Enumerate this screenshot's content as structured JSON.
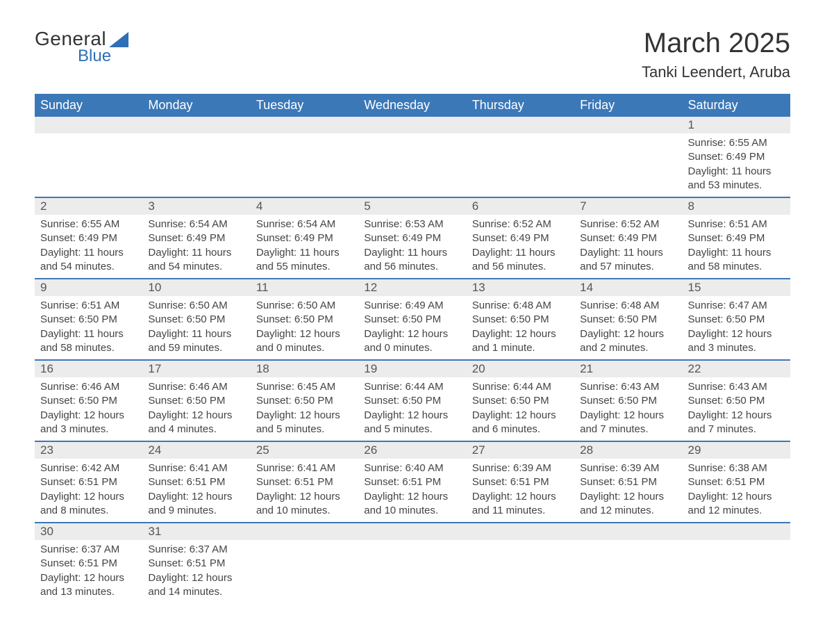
{
  "logo": {
    "line1": "General",
    "line2": "Blue",
    "icon_color": "#2e6fb5"
  },
  "title": "March 2025",
  "location": "Tanki Leendert, Aruba",
  "colors": {
    "header_bg": "#3b78b8",
    "header_text": "#ffffff",
    "daynum_bg": "#ececec",
    "row_border": "#3b78b8",
    "text": "#333333",
    "cell_text": "#444444"
  },
  "day_headers": [
    "Sunday",
    "Monday",
    "Tuesday",
    "Wednesday",
    "Thursday",
    "Friday",
    "Saturday"
  ],
  "weeks": [
    {
      "nums": [
        "",
        "",
        "",
        "",
        "",
        "",
        "1"
      ],
      "cells": [
        "",
        "",
        "",
        "",
        "",
        "",
        "Sunrise: 6:55 AM\nSunset: 6:49 PM\nDaylight: 11 hours and 53 minutes."
      ]
    },
    {
      "nums": [
        "2",
        "3",
        "4",
        "5",
        "6",
        "7",
        "8"
      ],
      "cells": [
        "Sunrise: 6:55 AM\nSunset: 6:49 PM\nDaylight: 11 hours and 54 minutes.",
        "Sunrise: 6:54 AM\nSunset: 6:49 PM\nDaylight: 11 hours and 54 minutes.",
        "Sunrise: 6:54 AM\nSunset: 6:49 PM\nDaylight: 11 hours and 55 minutes.",
        "Sunrise: 6:53 AM\nSunset: 6:49 PM\nDaylight: 11 hours and 56 minutes.",
        "Sunrise: 6:52 AM\nSunset: 6:49 PM\nDaylight: 11 hours and 56 minutes.",
        "Sunrise: 6:52 AM\nSunset: 6:49 PM\nDaylight: 11 hours and 57 minutes.",
        "Sunrise: 6:51 AM\nSunset: 6:49 PM\nDaylight: 11 hours and 58 minutes."
      ]
    },
    {
      "nums": [
        "9",
        "10",
        "11",
        "12",
        "13",
        "14",
        "15"
      ],
      "cells": [
        "Sunrise: 6:51 AM\nSunset: 6:50 PM\nDaylight: 11 hours and 58 minutes.",
        "Sunrise: 6:50 AM\nSunset: 6:50 PM\nDaylight: 11 hours and 59 minutes.",
        "Sunrise: 6:50 AM\nSunset: 6:50 PM\nDaylight: 12 hours and 0 minutes.",
        "Sunrise: 6:49 AM\nSunset: 6:50 PM\nDaylight: 12 hours and 0 minutes.",
        "Sunrise: 6:48 AM\nSunset: 6:50 PM\nDaylight: 12 hours and 1 minute.",
        "Sunrise: 6:48 AM\nSunset: 6:50 PM\nDaylight: 12 hours and 2 minutes.",
        "Sunrise: 6:47 AM\nSunset: 6:50 PM\nDaylight: 12 hours and 3 minutes."
      ]
    },
    {
      "nums": [
        "16",
        "17",
        "18",
        "19",
        "20",
        "21",
        "22"
      ],
      "cells": [
        "Sunrise: 6:46 AM\nSunset: 6:50 PM\nDaylight: 12 hours and 3 minutes.",
        "Sunrise: 6:46 AM\nSunset: 6:50 PM\nDaylight: 12 hours and 4 minutes.",
        "Sunrise: 6:45 AM\nSunset: 6:50 PM\nDaylight: 12 hours and 5 minutes.",
        "Sunrise: 6:44 AM\nSunset: 6:50 PM\nDaylight: 12 hours and 5 minutes.",
        "Sunrise: 6:44 AM\nSunset: 6:50 PM\nDaylight: 12 hours and 6 minutes.",
        "Sunrise: 6:43 AM\nSunset: 6:50 PM\nDaylight: 12 hours and 7 minutes.",
        "Sunrise: 6:43 AM\nSunset: 6:50 PM\nDaylight: 12 hours and 7 minutes."
      ]
    },
    {
      "nums": [
        "23",
        "24",
        "25",
        "26",
        "27",
        "28",
        "29"
      ],
      "cells": [
        "Sunrise: 6:42 AM\nSunset: 6:51 PM\nDaylight: 12 hours and 8 minutes.",
        "Sunrise: 6:41 AM\nSunset: 6:51 PM\nDaylight: 12 hours and 9 minutes.",
        "Sunrise: 6:41 AM\nSunset: 6:51 PM\nDaylight: 12 hours and 10 minutes.",
        "Sunrise: 6:40 AM\nSunset: 6:51 PM\nDaylight: 12 hours and 10 minutes.",
        "Sunrise: 6:39 AM\nSunset: 6:51 PM\nDaylight: 12 hours and 11 minutes.",
        "Sunrise: 6:39 AM\nSunset: 6:51 PM\nDaylight: 12 hours and 12 minutes.",
        "Sunrise: 6:38 AM\nSunset: 6:51 PM\nDaylight: 12 hours and 12 minutes."
      ]
    },
    {
      "nums": [
        "30",
        "31",
        "",
        "",
        "",
        "",
        ""
      ],
      "cells": [
        "Sunrise: 6:37 AM\nSunset: 6:51 PM\nDaylight: 12 hours and 13 minutes.",
        "Sunrise: 6:37 AM\nSunset: 6:51 PM\nDaylight: 12 hours and 14 minutes.",
        "",
        "",
        "",
        "",
        ""
      ]
    }
  ]
}
